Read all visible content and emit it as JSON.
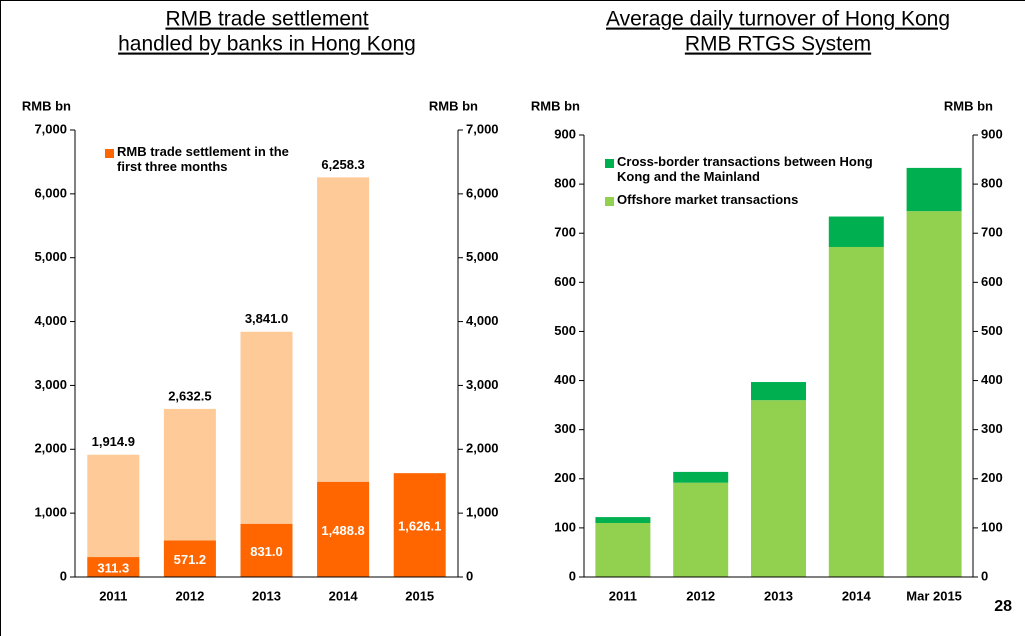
{
  "chart_data": [
    {
      "type": "bar",
      "stacked": false,
      "mirror_axis": true,
      "title": [
        "RMB trade settlement",
        "handled by banks in Hong Kong"
      ],
      "ylabel": "RMB bn",
      "categories": [
        "2011",
        "2012",
        "2013",
        "2014",
        "2015"
      ],
      "ylim": [
        0,
        7000
      ],
      "yticks": [
        0,
        {
          "value": 1000,
          "label": "1,000"
        },
        {
          "value": 2000,
          "label": "2,000"
        },
        {
          "value": 3000,
          "label": "3,000"
        },
        {
          "value": 4000,
          "label": "4,000"
        },
        {
          "value": 5000,
          "label": "5,000"
        },
        {
          "value": 6000,
          "label": "6,000"
        },
        {
          "value": 7000,
          "label": "7,000"
        }
      ],
      "series": [
        {
          "color": "#fdca98",
          "label_position": "outside",
          "values": [
            1914.9,
            2632.5,
            3841.0,
            6258.3,
            null
          ],
          "value_labels": [
            "1,914.9",
            "2,632.5",
            "3,841.0",
            "6,258.3",
            null
          ]
        },
        {
          "name": "RMB trade settlement in the first three months",
          "color": "#ff6600",
          "label_position": "inside",
          "values": [
            311.3,
            571.2,
            831.0,
            1488.8,
            1626.1
          ],
          "value_labels": [
            "311.3",
            "571.2",
            "831.0",
            "1,488.8",
            "1,626.1"
          ]
        }
      ]
    },
    {
      "type": "bar",
      "stacked": true,
      "mirror_axis": true,
      "title": [
        "Average daily turnover of Hong Kong",
        "RMB RTGS System"
      ],
      "ylabel": "RMB bn",
      "categories": [
        "2011",
        "2012",
        "2013",
        "2014",
        "Mar 2015"
      ],
      "ylim": [
        0,
        900
      ],
      "yticks": [
        0,
        100,
        200,
        300,
        400,
        500,
        600,
        700,
        800,
        900
      ],
      "series": [
        {
          "name": "Offshore market transactions",
          "color": "#92d050",
          "values": [
            110,
            192,
            360,
            672,
            745
          ]
        },
        {
          "name": "Cross-border transactions between Hong Kong and the Mainland",
          "color": "#00b050",
          "values": [
            12,
            22,
            37,
            62,
            88
          ]
        }
      ]
    }
  ],
  "page_number": "28"
}
